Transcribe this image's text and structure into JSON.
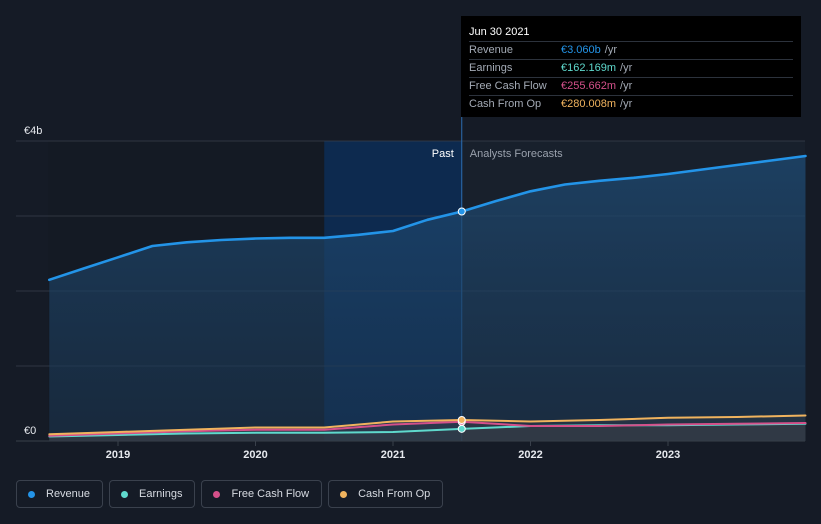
{
  "colors": {
    "background": "#151b26",
    "revenue": "#2394e8",
    "earnings": "#5fd9cd",
    "free_cash_flow": "#d4508a",
    "cash_from_op": "#f0b35e",
    "highlight_band": "#0d2a4f",
    "grid": "#39404b"
  },
  "tooltip": {
    "date": "Jun 30 2021",
    "rows": [
      {
        "label": "Revenue",
        "value": "€3.060b",
        "unit": "/yr",
        "color": "#2394e8"
      },
      {
        "label": "Earnings",
        "value": "€162.169m",
        "unit": "/yr",
        "color": "#5fd9cd"
      },
      {
        "label": "Free Cash Flow",
        "value": "€255.662m",
        "unit": "/yr",
        "color": "#d4508a"
      },
      {
        "label": "Cash From Op",
        "value": "€280.008m",
        "unit": "/yr",
        "color": "#f0b35e"
      }
    ]
  },
  "legend": [
    {
      "label": "Revenue",
      "color": "#2394e8"
    },
    {
      "label": "Earnings",
      "color": "#5fd9cd"
    },
    {
      "label": "Free Cash Flow",
      "color": "#d4508a"
    },
    {
      "label": "Cash From Op",
      "color": "#f0b35e"
    }
  ],
  "chart_data": {
    "type": "area",
    "title": "",
    "xlabel": "",
    "ylabel": "",
    "ylim": [
      0,
      4.0
    ],
    "y_unit": "€b",
    "y_tick_labels": [
      {
        "value": 4.0,
        "label": "€4b"
      },
      {
        "value": 0,
        "label": "€0"
      }
    ],
    "y_gridlines": [
      4.0,
      3.0,
      2.0,
      1.0,
      0
    ],
    "xlim": [
      2018.5,
      2024.0
    ],
    "x_ticks": [
      2019,
      2020,
      2021,
      2022,
      2023
    ],
    "x_tick_labels": [
      "2019",
      "2020",
      "2021",
      "2022",
      "2023"
    ],
    "past_label": "Past",
    "forecast_label": "Analysts Forecasts",
    "divider_x": 2021.5,
    "highlight_start_x": 2020.5,
    "series": [
      {
        "name": "Revenue",
        "color": "#2394e8",
        "x": [
          2018.5,
          2018.75,
          2019.0,
          2019.25,
          2019.5,
          2019.75,
          2020.0,
          2020.25,
          2020.5,
          2020.75,
          2021.0,
          2021.25,
          2021.5,
          2021.75,
          2022.0,
          2022.25,
          2022.5,
          2022.75,
          2023.0,
          2023.25,
          2023.5,
          2023.75,
          2024.0
        ],
        "values": [
          2.15,
          2.3,
          2.45,
          2.6,
          2.65,
          2.68,
          2.7,
          2.71,
          2.71,
          2.75,
          2.8,
          2.95,
          3.06,
          3.2,
          3.33,
          3.42,
          3.47,
          3.51,
          3.56,
          3.62,
          3.68,
          3.74,
          3.8
        ]
      },
      {
        "name": "Earnings",
        "color": "#5fd9cd",
        "x": [
          2018.5,
          2019.0,
          2019.5,
          2020.0,
          2020.5,
          2021.0,
          2021.5,
          2022.0,
          2022.5,
          2023.0,
          2023.5,
          2024.0
        ],
        "values": [
          0.06,
          0.08,
          0.1,
          0.11,
          0.11,
          0.12,
          0.162,
          0.2,
          0.21,
          0.21,
          0.22,
          0.23
        ]
      },
      {
        "name": "Free Cash Flow",
        "color": "#d4508a",
        "x": [
          2018.5,
          2019.0,
          2019.5,
          2020.0,
          2020.5,
          2021.0,
          2021.5,
          2022.0,
          2022.5,
          2023.0,
          2023.5,
          2024.0
        ],
        "values": [
          0.07,
          0.1,
          0.13,
          0.15,
          0.15,
          0.22,
          0.256,
          0.2,
          0.2,
          0.22,
          0.23,
          0.24
        ]
      },
      {
        "name": "Cash From Op",
        "color": "#f0b35e",
        "x": [
          2018.5,
          2019.0,
          2019.5,
          2020.0,
          2020.5,
          2021.0,
          2021.5,
          2022.0,
          2022.5,
          2023.0,
          2023.5,
          2024.0
        ],
        "values": [
          0.09,
          0.12,
          0.15,
          0.18,
          0.18,
          0.26,
          0.28,
          0.26,
          0.28,
          0.31,
          0.32,
          0.34
        ]
      }
    ],
    "markers": [
      {
        "series": "Revenue",
        "x": 2021.5,
        "value": 3.06
      },
      {
        "series": "Earnings",
        "x": 2021.5,
        "value": 0.162
      },
      {
        "series": "Free Cash Flow",
        "x": 2021.5,
        "value": 0.256
      },
      {
        "series": "Cash From Op",
        "x": 2021.5,
        "value": 0.28
      }
    ]
  }
}
